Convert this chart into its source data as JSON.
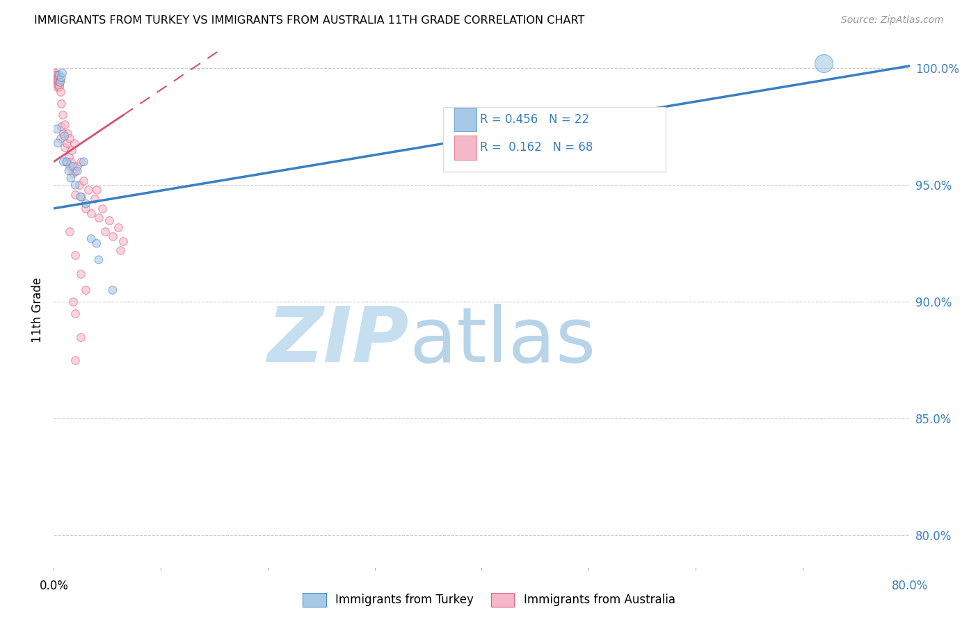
{
  "title": "IMMIGRANTS FROM TURKEY VS IMMIGRANTS FROM AUSTRALIA 11TH GRADE CORRELATION CHART",
  "source": "Source: ZipAtlas.com",
  "ylabel": "11th Grade",
  "y_ticks": [
    0.8,
    0.85,
    0.9,
    0.95,
    1.0
  ],
  "y_tick_labels": [
    "80.0%",
    "85.0%",
    "90.0%",
    "95.0%",
    "100.0%"
  ],
  "turkey_color": "#A8C8E8",
  "australia_color": "#F4B8C8",
  "turkey_edge_color": "#4A90C4",
  "australia_edge_color": "#E06080",
  "turkey_line_color": "#3A7FC1",
  "australia_line_color": "#D45070",
  "scatter_alpha": 0.6,
  "turkey_scatter": [
    [
      0.003,
      0.974
    ],
    [
      0.004,
      0.968
    ],
    [
      0.005,
      0.997
    ],
    [
      0.006,
      0.994
    ],
    [
      0.007,
      0.996
    ],
    [
      0.008,
      0.998
    ],
    [
      0.009,
      0.96
    ],
    [
      0.01,
      0.971
    ],
    [
      0.012,
      0.96
    ],
    [
      0.014,
      0.956
    ],
    [
      0.016,
      0.953
    ],
    [
      0.018,
      0.958
    ],
    [
      0.02,
      0.95
    ],
    [
      0.022,
      0.956
    ],
    [
      0.025,
      0.945
    ],
    [
      0.028,
      0.96
    ],
    [
      0.03,
      0.942
    ],
    [
      0.035,
      0.927
    ],
    [
      0.04,
      0.925
    ],
    [
      0.042,
      0.918
    ],
    [
      0.055,
      0.905
    ],
    [
      0.72,
      1.002
    ]
  ],
  "turkey_sizes": [
    70,
    70,
    70,
    70,
    70,
    70,
    70,
    70,
    70,
    70,
    70,
    70,
    70,
    70,
    70,
    70,
    70,
    70,
    70,
    70,
    70,
    350
  ],
  "australia_scatter": [
    [
      0.001,
      0.998
    ],
    [
      0.001,
      0.997
    ],
    [
      0.001,
      0.996
    ],
    [
      0.002,
      0.998
    ],
    [
      0.002,
      0.997
    ],
    [
      0.002,
      0.996
    ],
    [
      0.002,
      0.995
    ],
    [
      0.002,
      0.994
    ],
    [
      0.003,
      0.997
    ],
    [
      0.003,
      0.996
    ],
    [
      0.003,
      0.995
    ],
    [
      0.003,
      0.994
    ],
    [
      0.003,
      0.993
    ],
    [
      0.003,
      0.992
    ],
    [
      0.004,
      0.996
    ],
    [
      0.004,
      0.995
    ],
    [
      0.004,
      0.994
    ],
    [
      0.004,
      0.993
    ],
    [
      0.005,
      0.994
    ],
    [
      0.005,
      0.993
    ],
    [
      0.005,
      0.992
    ],
    [
      0.006,
      0.995
    ],
    [
      0.006,
      0.99
    ],
    [
      0.006,
      0.97
    ],
    [
      0.007,
      0.985
    ],
    [
      0.007,
      0.975
    ],
    [
      0.008,
      0.98
    ],
    [
      0.009,
      0.972
    ],
    [
      0.01,
      0.976
    ],
    [
      0.01,
      0.966
    ],
    [
      0.012,
      0.968
    ],
    [
      0.012,
      0.96
    ],
    [
      0.013,
      0.972
    ],
    [
      0.014,
      0.962
    ],
    [
      0.015,
      0.97
    ],
    [
      0.015,
      0.958
    ],
    [
      0.016,
      0.96
    ],
    [
      0.017,
      0.965
    ],
    [
      0.018,
      0.955
    ],
    [
      0.019,
      0.968
    ],
    [
      0.02,
      0.956
    ],
    [
      0.02,
      0.946
    ],
    [
      0.022,
      0.958
    ],
    [
      0.024,
      0.95
    ],
    [
      0.025,
      0.96
    ],
    [
      0.026,
      0.945
    ],
    [
      0.028,
      0.952
    ],
    [
      0.03,
      0.94
    ],
    [
      0.032,
      0.948
    ],
    [
      0.035,
      0.938
    ],
    [
      0.038,
      0.944
    ],
    [
      0.04,
      0.948
    ],
    [
      0.042,
      0.936
    ],
    [
      0.045,
      0.94
    ],
    [
      0.048,
      0.93
    ],
    [
      0.052,
      0.935
    ],
    [
      0.055,
      0.928
    ],
    [
      0.06,
      0.932
    ],
    [
      0.062,
      0.922
    ],
    [
      0.065,
      0.926
    ],
    [
      0.015,
      0.93
    ],
    [
      0.02,
      0.92
    ],
    [
      0.025,
      0.912
    ],
    [
      0.03,
      0.905
    ],
    [
      0.018,
      0.9
    ],
    [
      0.02,
      0.895
    ],
    [
      0.025,
      0.885
    ],
    [
      0.02,
      0.875
    ]
  ],
  "australia_size": 70,
  "xlim": [
    0.0,
    0.8
  ],
  "ylim": [
    0.785,
    1.008
  ],
  "turkey_trendline": [
    0.0,
    0.8,
    0.94,
    1.001
  ],
  "australia_trendline_solid": [
    0.0,
    0.065,
    0.96,
    0.98
  ],
  "australia_trendline_dash": [
    0.0,
    0.8,
    0.96,
    1.02
  ],
  "watermark_zip_color": "#C5DFF0",
  "watermark_atlas_color": "#B8D4E8",
  "bg_color": "#FFFFFF"
}
